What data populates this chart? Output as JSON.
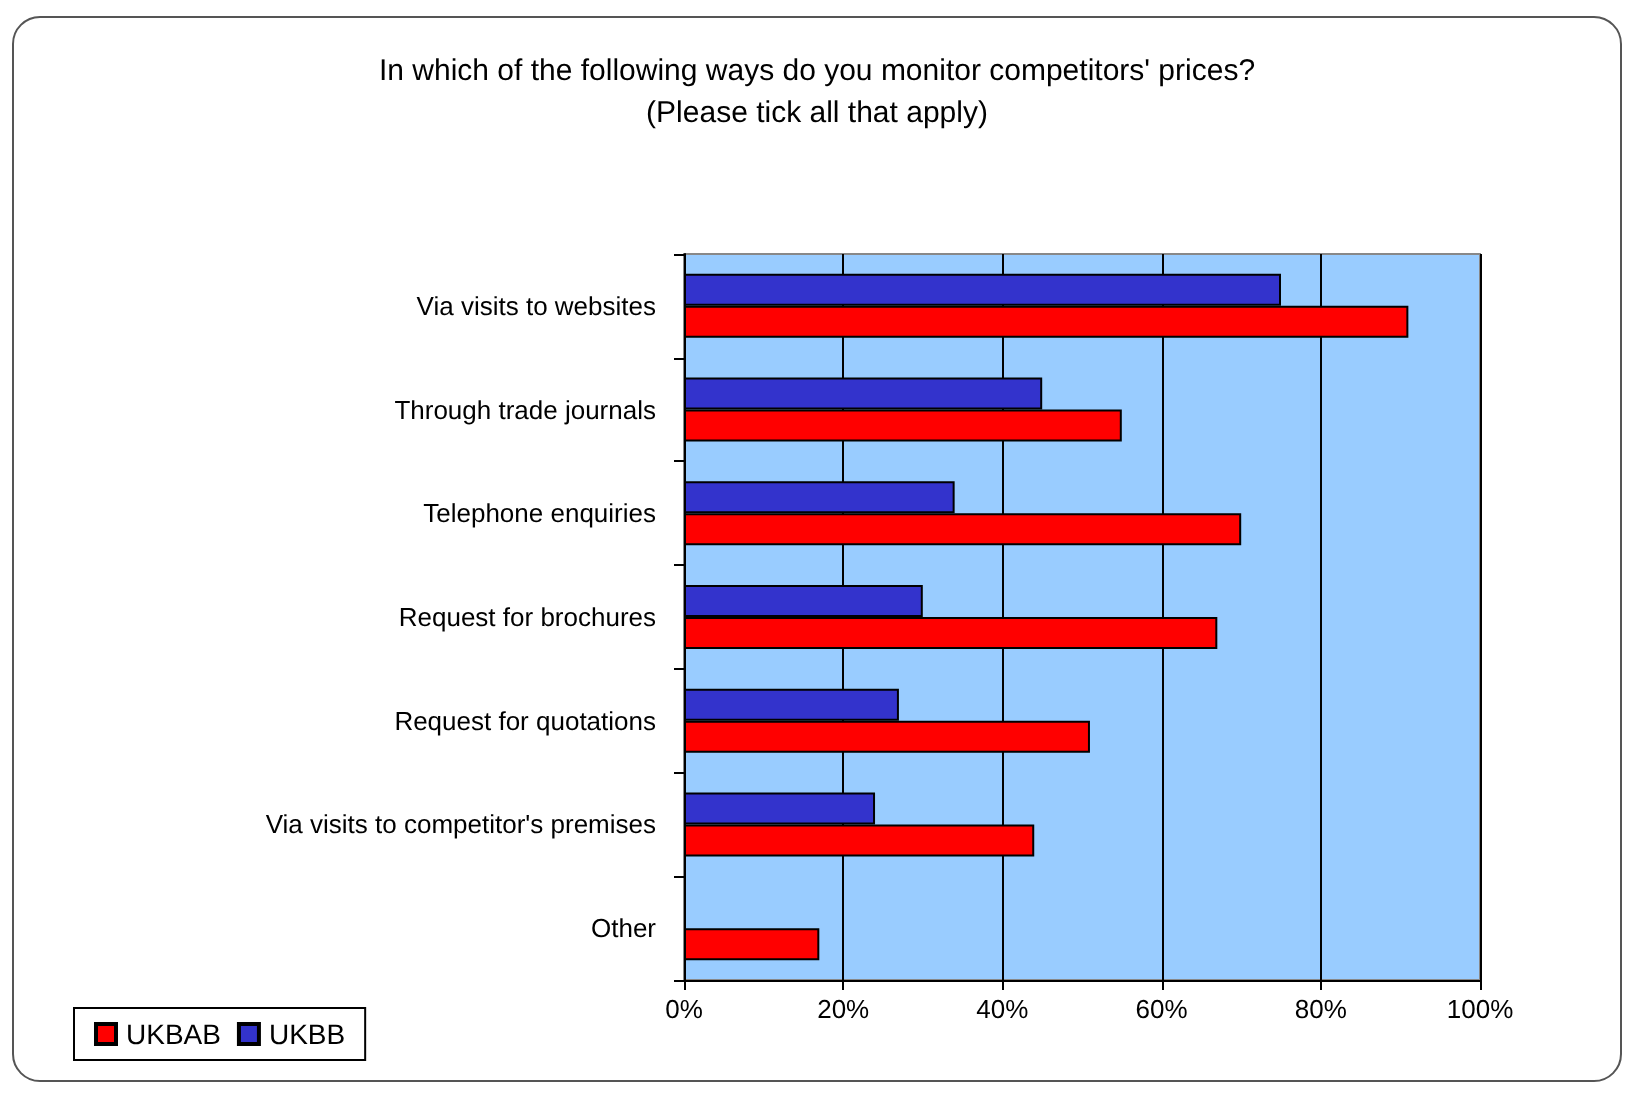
{
  "chart_data": {
    "type": "bar",
    "orientation": "horizontal",
    "title": "In which of the following ways do you monitor competitors' prices?",
    "subtitle": "(Please tick all that apply)",
    "categories": [
      "Via visits to websites",
      "Through trade journals",
      "Telephone enquiries",
      "Request for brochures",
      "Request for quotations",
      "Via visits to competitor's premises",
      "Other"
    ],
    "series": [
      {
        "name": "UKBAB",
        "color": "#ff0000",
        "values": [
          91,
          55,
          70,
          67,
          51,
          44,
          17
        ]
      },
      {
        "name": "UKBB",
        "color": "#3333cc",
        "values": [
          75,
          45,
          34,
          30,
          27,
          24,
          null
        ]
      }
    ],
    "xlim": [
      0,
      100
    ],
    "xticks": [
      {
        "value": 0,
        "label": "0%"
      },
      {
        "value": 20,
        "label": "20%"
      },
      {
        "value": 40,
        "label": "40%"
      },
      {
        "value": 60,
        "label": "60%"
      },
      {
        "value": 80,
        "label": "80%"
      },
      {
        "value": 100,
        "label": "100%"
      }
    ],
    "grid": "x",
    "legend": "bottom left"
  }
}
